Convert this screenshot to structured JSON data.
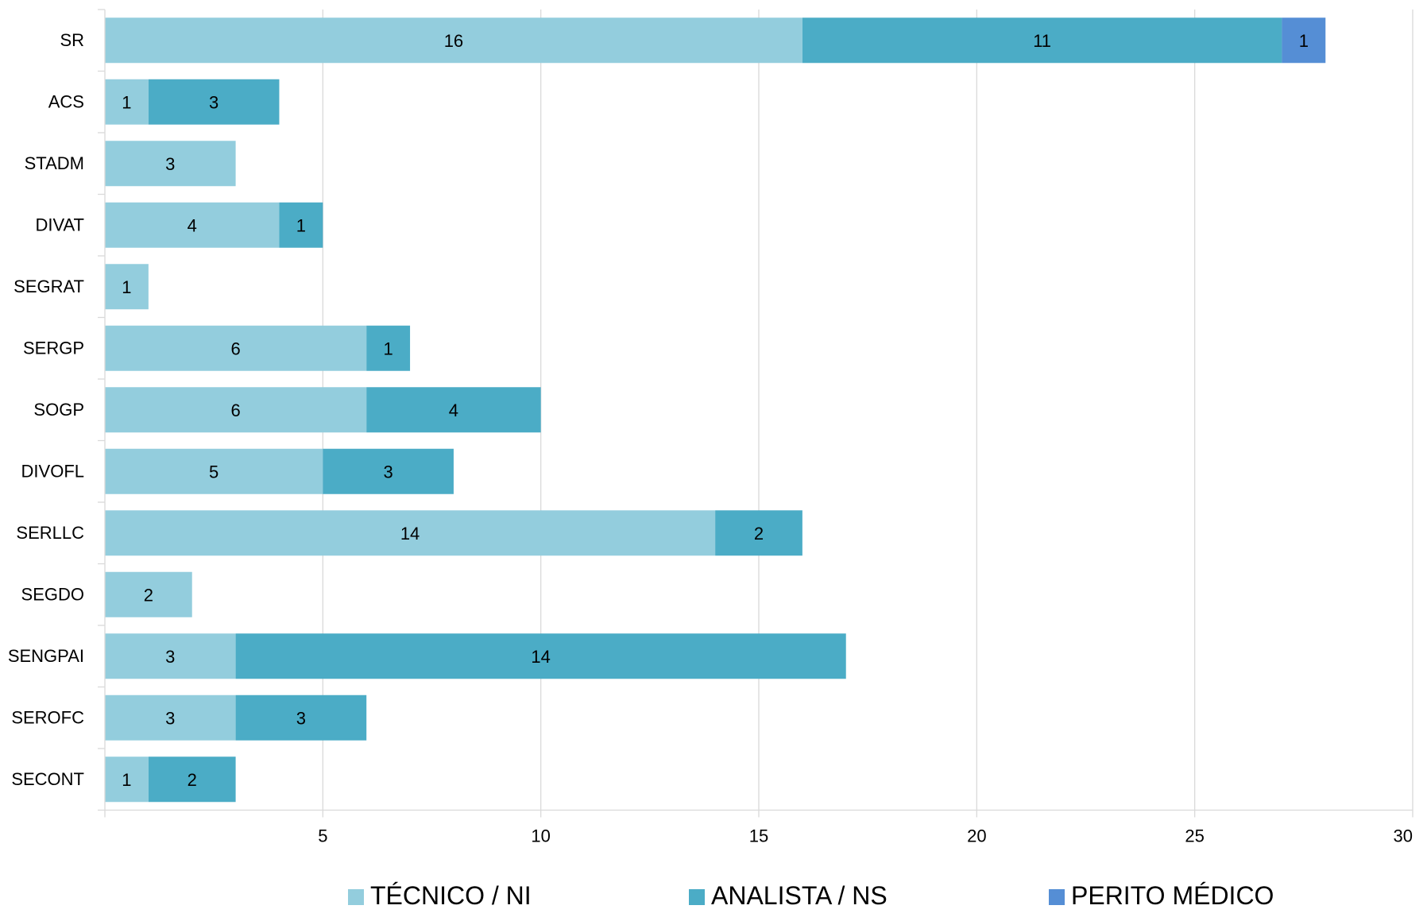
{
  "chart_data": {
    "type": "bar",
    "orientation": "horizontal",
    "stacked": true,
    "categories": [
      "SR",
      "ACS",
      "STADM",
      "DIVAT",
      "SEGRAT",
      "SERGP",
      "SOGP",
      "DIVOFL",
      "SERLLC",
      "SEGDO",
      "SENGPAI",
      "SEROFC",
      "SECONT"
    ],
    "series": [
      {
        "name": "TÉCNICO / NI",
        "color": "#93CDDD",
        "values": [
          16,
          1,
          3,
          4,
          1,
          6,
          6,
          5,
          14,
          2,
          3,
          3,
          1
        ]
      },
      {
        "name": "ANALISTA / NS",
        "color": "#4BACC6",
        "values": [
          11,
          3,
          null,
          1,
          null,
          1,
          4,
          3,
          2,
          null,
          14,
          3,
          2
        ]
      },
      {
        "name": "PERITO MÉDICO",
        "color": "#558ED5",
        "values": [
          1,
          null,
          null,
          null,
          null,
          null,
          null,
          null,
          null,
          null,
          null,
          null,
          null
        ]
      }
    ],
    "xlim": [
      0,
      30
    ],
    "xticks": [
      5,
      10,
      15,
      20,
      25,
      30
    ],
    "grid": true,
    "legend_position": "bottom",
    "data_labels": true
  }
}
